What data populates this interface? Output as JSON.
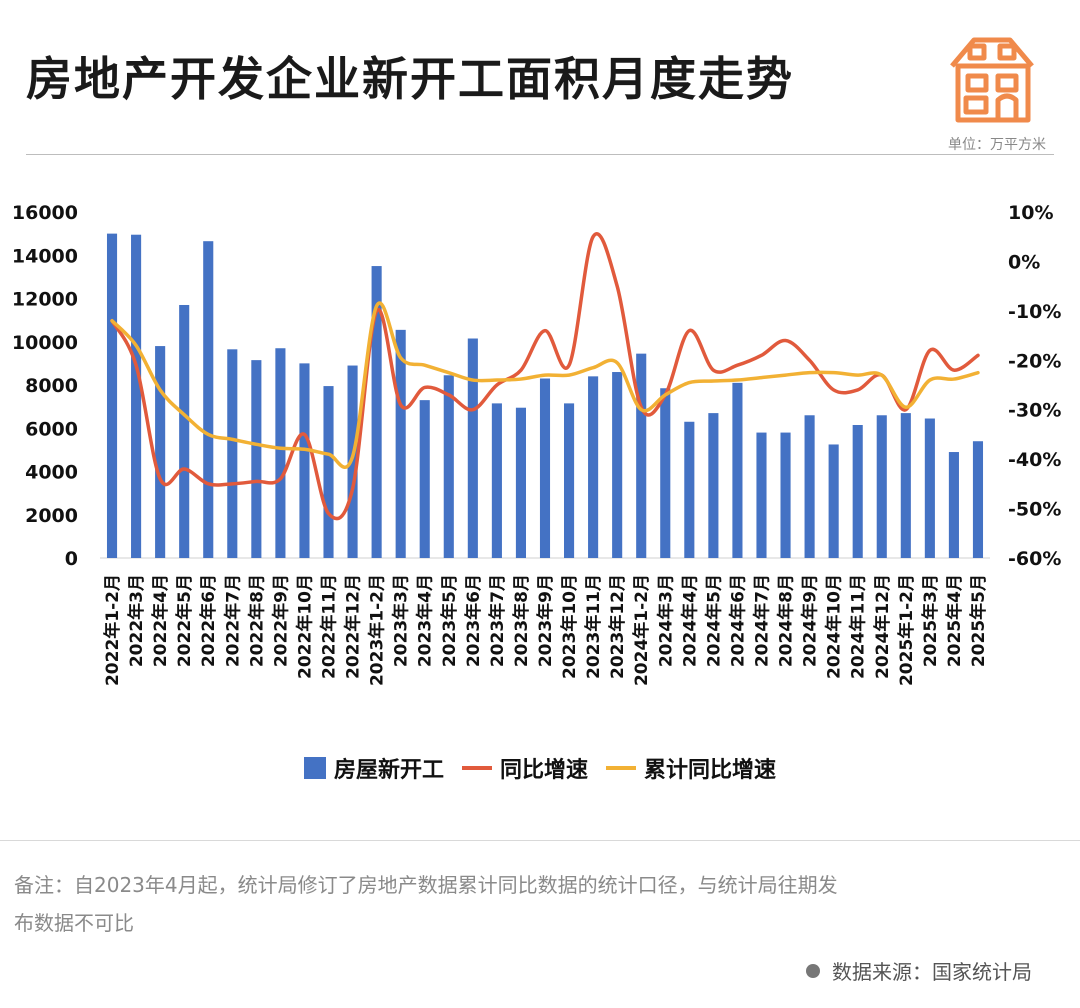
{
  "header": {
    "title": "房地产开发企业新开工面积月度走势",
    "unit": "单位：万平方米"
  },
  "footer": {
    "note_line1": "备注：自2023年4月起，统计局修订了房地产数据累计同比数据的统计口径，与统计局往期发",
    "note_line2": "布数据不可比",
    "source": "数据来源：国家统计局"
  },
  "colors": {
    "bar": "#4472C4",
    "yoy": "#E15A3C",
    "cumulative": "#F2B134",
    "house_icon": "#F08A4B"
  },
  "chart_data": {
    "type": "bar",
    "categories": [
      "2022年1-2月",
      "2022年3月",
      "2022年4月",
      "2022年5月",
      "2022年6月",
      "2022年7月",
      "2022年8月",
      "2022年9月",
      "2022年10月",
      "2022年11月",
      "2022年12月",
      "2023年1-2月",
      "2023年3月",
      "2023年4月",
      "2023年5月",
      "2023年6月",
      "2023年7月",
      "2023年8月",
      "2023年9月",
      "2023年10月",
      "2023年11月",
      "2023年12月",
      "2024年1-2月",
      "2024年3月",
      "2024年4月",
      "2024年5月",
      "2024年6月",
      "2024年7月",
      "2024年8月",
      "2024年9月",
      "2024年10月",
      "2024年11月",
      "2024年12月",
      "2025年1-2月",
      "2025年3月",
      "2025年4月",
      "2025年5月"
    ],
    "series": [
      {
        "name": "房屋新开工",
        "axis": "left",
        "kind": "bar",
        "values": [
          15000,
          14950,
          9800,
          11700,
          14650,
          9650,
          9150,
          9700,
          9000,
          7950,
          8900,
          13500,
          10550,
          7300,
          8450,
          10150,
          7150,
          6950,
          8300,
          7150,
          8400,
          8600,
          9450,
          7850,
          6300,
          6700,
          8100,
          5800,
          5800,
          6600,
          5250,
          6150,
          6600,
          6700,
          6450,
          4900,
          5400
        ]
      },
      {
        "name": "同比增速",
        "axis": "right",
        "kind": "line",
        "values": [
          -12,
          -21,
          -44,
          -42,
          -45,
          -45,
          -44.5,
          -44,
          -35,
          -51,
          -46,
          -10,
          -29,
          -25.5,
          -27,
          -30,
          -25,
          -22,
          -14,
          -21,
          5,
          -5,
          -29.5,
          -27,
          -14,
          -22,
          -21,
          -19,
          -16,
          -20,
          -26,
          -26,
          -23,
          -30,
          -18,
          -22,
          -19
        ]
      },
      {
        "name": "累计同比增速",
        "axis": "right",
        "kind": "line",
        "values": [
          -12,
          -17,
          -26,
          -31,
          -35,
          -36,
          -37,
          -37.8,
          -38,
          -39,
          -39.5,
          -9,
          -19.5,
          -21,
          -22.5,
          -24,
          -24,
          -23.8,
          -23,
          -23,
          -21.5,
          -20.5,
          -30,
          -27,
          -24.5,
          -24.2,
          -24,
          -23.5,
          -23,
          -22.5,
          -22.5,
          -23,
          -23,
          -29.5,
          -24,
          -23.8,
          -22.5
        ]
      }
    ],
    "y_left": {
      "min": 0,
      "max": 16000,
      "step": 2000,
      "ticks": [
        "0",
        "2000",
        "4000",
        "6000",
        "8000",
        "10000",
        "12000",
        "14000",
        "16000"
      ]
    },
    "y_right": {
      "min": -60,
      "max": 10,
      "step": 10,
      "ticks": [
        "-60%",
        "-50%",
        "-40%",
        "-30%",
        "-20%",
        "-10%",
        "0%",
        "10%"
      ]
    },
    "legend": {
      "position": "bottom",
      "items": [
        "房屋新开工",
        "同比增速",
        "累计同比增速"
      ]
    },
    "grid": false
  }
}
